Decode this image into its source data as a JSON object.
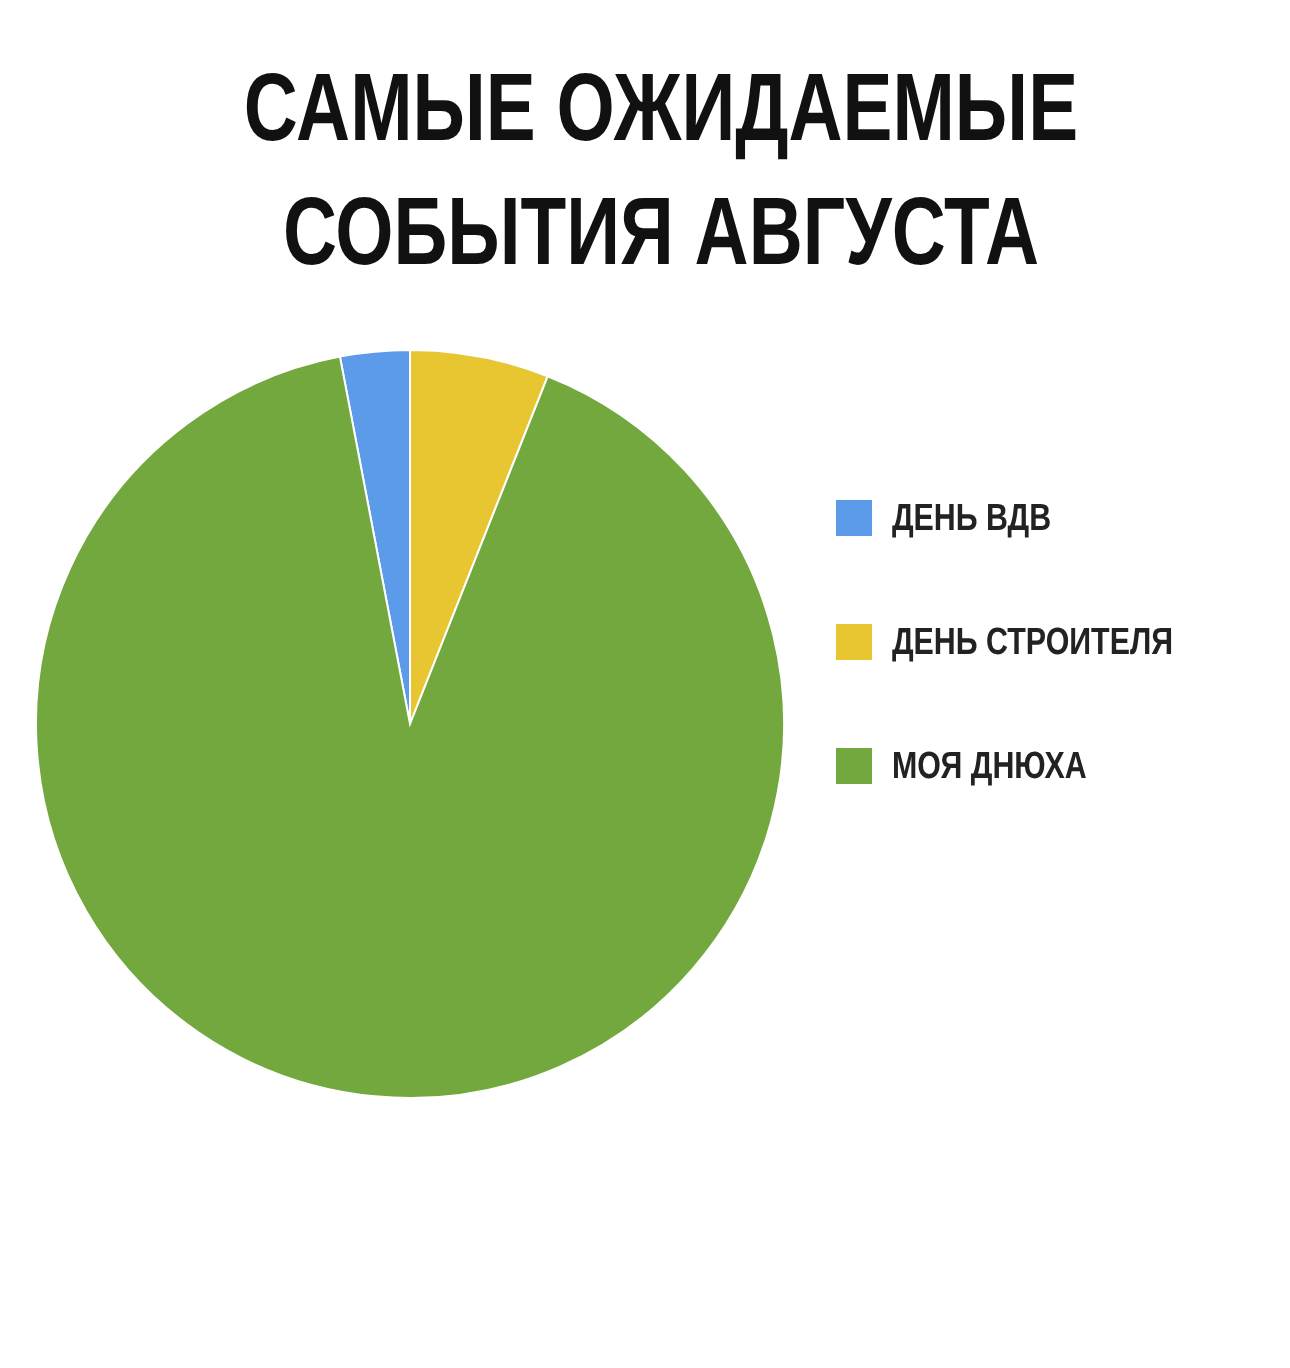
{
  "chart_data": {
    "type": "pie",
    "title": "САМЫЕ ОЖИДАЕМЫЕ СОБЫТИЯ АВГУСТА",
    "categories": [
      "ДЕНЬ ВДВ",
      "ДЕНЬ СТРОИТЕЛЯ",
      "МОЯ ДНЮХА"
    ],
    "values": [
      3,
      6,
      91
    ],
    "colors": [
      "#5b9bea",
      "#e8c632",
      "#72a83e"
    ],
    "legend": "right"
  }
}
